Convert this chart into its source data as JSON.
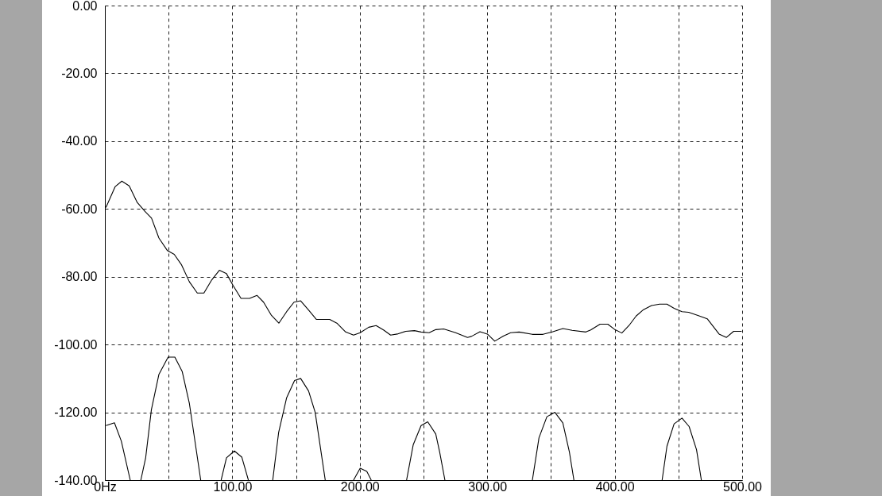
{
  "chart_data": {
    "type": "line",
    "xlim": [
      0,
      500
    ],
    "ylim": [
      -140,
      0
    ],
    "xticks": [
      {
        "value": 0,
        "label": "0Hz"
      },
      {
        "value": 50,
        "label": null
      },
      {
        "value": 100,
        "label": "100.00"
      },
      {
        "value": 150,
        "label": null
      },
      {
        "value": 200,
        "label": "200.00"
      },
      {
        "value": 250,
        "label": null
      },
      {
        "value": 300,
        "label": "300.00"
      },
      {
        "value": 350,
        "label": null
      },
      {
        "value": 400,
        "label": "400.00"
      },
      {
        "value": 450,
        "label": null
      },
      {
        "value": 500,
        "label": "500.00"
      }
    ],
    "yticks": [
      {
        "value": 0,
        "label": "0.00"
      },
      {
        "value": -20,
        "label": "-20.00"
      },
      {
        "value": -40,
        "label": "-40.00"
      },
      {
        "value": -60,
        "label": "-60.00"
      },
      {
        "value": -80,
        "label": "-80.00"
      },
      {
        "value": -100,
        "label": "-100.00"
      },
      {
        "value": -120,
        "label": "-120.00"
      },
      {
        "value": -140,
        "label": "-140.00"
      }
    ],
    "grid": true,
    "marker": "none",
    "line_style": "solid",
    "series": [
      {
        "color": "#000000",
        "x": [
          0.8,
          8.1,
          13.3,
          19.1,
          25.4,
          31.6,
          36.6,
          42.4,
          49.1,
          54.4,
          60.0,
          66.3,
          72.5,
          77.7,
          83.9,
          89.8,
          95.4,
          100.6,
          106.8,
          113.5,
          119.3,
          124.5,
          130.7,
          136.5,
          142.6,
          148.4,
          153.6,
          159.8,
          166.0,
          176.4,
          182.0,
          188.9,
          195.1,
          200.3,
          207.0,
          212.8,
          218.6,
          224.2,
          229.4,
          236.0,
          242.9,
          248.1,
          254.4,
          259.6,
          265.8,
          275.2,
          284.5,
          287.6,
          294.3,
          300.1,
          305.9,
          312.6,
          318.4,
          325.0,
          335.4,
          343.7,
          351.0,
          359.3,
          366.6,
          377.4,
          381.2,
          388.5,
          394.6,
          399.8,
          405.6,
          411.2,
          416.8,
          422.6,
          428.9,
          435.2,
          441.0,
          446.6,
          452.8,
          458.0,
          465.3,
          472.6,
          481.9,
          487.7,
          493.3,
          499.6
        ],
        "values": [
          -59.6,
          -53.4,
          -51.8,
          -53.2,
          -58.1,
          -60.8,
          -62.7,
          -68.6,
          -72.3,
          -73.4,
          -76.4,
          -81.5,
          -84.8,
          -84.8,
          -80.9,
          -78.1,
          -79.1,
          -82.6,
          -86.4,
          -86.4,
          -85.5,
          -87.5,
          -91.4,
          -93.7,
          -90.3,
          -87.5,
          -87.1,
          -89.8,
          -92.6,
          -92.6,
          -93.7,
          -96.3,
          -97.2,
          -96.5,
          -94.9,
          -94.4,
          -95.7,
          -97.2,
          -96.9,
          -96.1,
          -95.9,
          -96.3,
          -96.5,
          -95.6,
          -95.4,
          -96.5,
          -97.9,
          -97.6,
          -96.2,
          -96.9,
          -99.0,
          -97.5,
          -96.5,
          -96.3,
          -97.0,
          -97.0,
          -96.3,
          -95.3,
          -95.8,
          -96.3,
          -95.7,
          -94.0,
          -94.0,
          -95.5,
          -96.6,
          -94.4,
          -91.6,
          -89.7,
          -88.5,
          -88.1,
          -88.1,
          -89.3,
          -90.3,
          -90.5,
          -91.4,
          -92.4,
          -96.9,
          -97.9,
          -96.1,
          -96.1
        ]
      },
      {
        "color": "#000000",
        "x": [
          0.8,
          7.5,
          12.9,
          19.9,
          24.0,
          28.2,
          32.0,
          36.5,
          42.4,
          49.6,
          54.9,
          60.7,
          66.3,
          75.2,
          83.0,
          91.2,
          95.4,
          101.6,
          107.4,
          112.6,
          122.0,
          131.7,
          136.3,
          142.6,
          148.8,
          153.6,
          159.8,
          165.0,
          172.9,
          184.0,
          195.1,
          200.3,
          205.5,
          209.0,
          222.0,
          236.7,
          241.9,
          248.1,
          253.3,
          259.6,
          262.7,
          266.8,
          300.0,
          335.4,
          340.6,
          346.8,
          353.1,
          359.3,
          364.5,
          368.0,
          400.0,
          437.2,
          441.0,
          446.6,
          452.8,
          458.4,
          464.2,
          468.0
        ],
        "values": [
          -123.9,
          -123.1,
          -128.5,
          -140,
          null,
          -140,
          -133.4,
          -119.2,
          -108.8,
          -103.7,
          -103.7,
          -108.0,
          -117.4,
          -140,
          null,
          -140,
          -133.4,
          -131.4,
          -133.2,
          -140,
          null,
          -140,
          -126.0,
          -115.7,
          -110.6,
          -110.0,
          -113.7,
          -120.0,
          -140,
          null,
          -140,
          -136.5,
          -137.4,
          -140,
          null,
          -140,
          -129.6,
          -123.9,
          -122.8,
          -126.4,
          -131.8,
          -140,
          null,
          -140,
          -127.5,
          -121.3,
          -120.0,
          -123.1,
          -131.8,
          -140,
          null,
          -140,
          -130.0,
          -123.4,
          -121.7,
          -124.2,
          -131.0,
          -140
        ]
      }
    ]
  }
}
